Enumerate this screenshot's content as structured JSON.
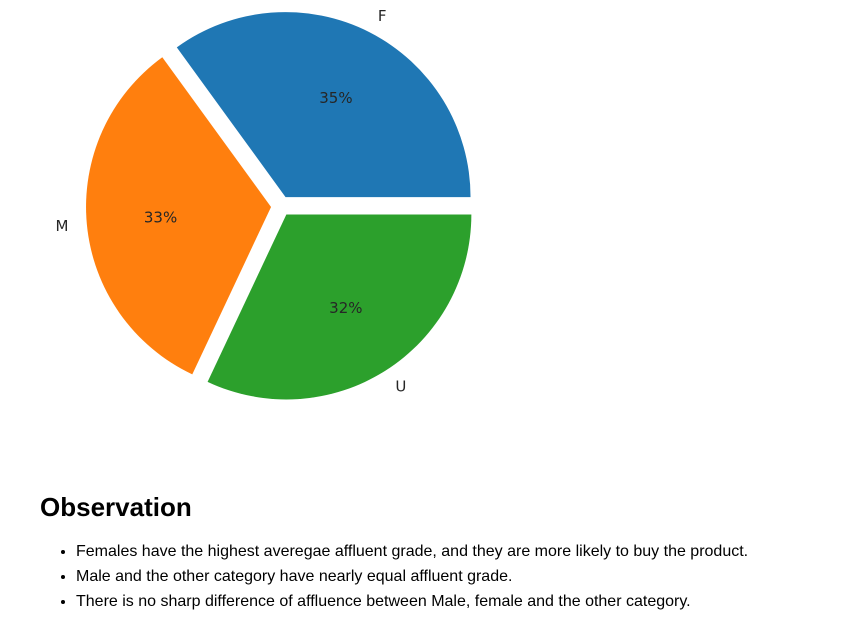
{
  "chart_data": {
    "type": "pie",
    "categories": [
      "F",
      "M",
      "U"
    ],
    "values": [
      35,
      33,
      32
    ],
    "value_labels": [
      "35%",
      "33%",
      "32%"
    ],
    "colors": [
      "#1f77b4",
      "#ff7f0e",
      "#2ca02c"
    ],
    "exploded": true
  },
  "observation": {
    "heading": "Observation",
    "bullets": [
      "Females have the highest averegae affluent grade, and they are more likely to buy the product.",
      "Male and the other category have nearly equal affluent grade.",
      "There is no sharp difference of affluence between Male, female and the other category."
    ]
  }
}
